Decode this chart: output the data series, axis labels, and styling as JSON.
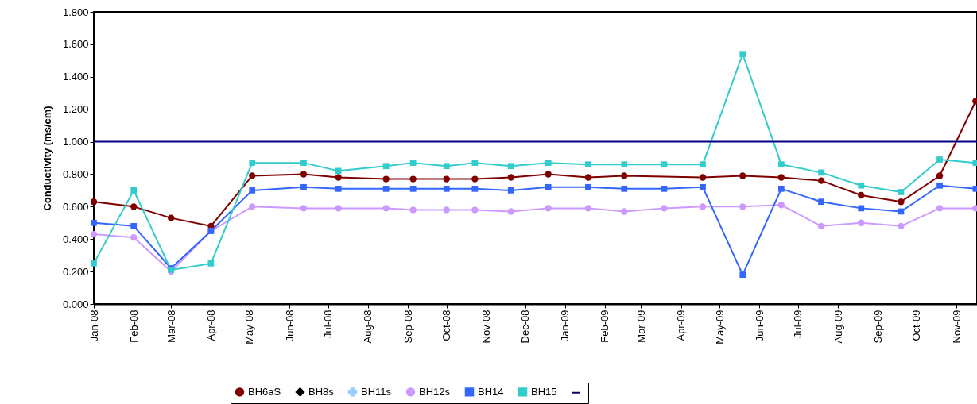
{
  "chart_data": {
    "type": "line",
    "ylabel": "Conductivity (ms/cm)",
    "x": [
      "2008-01-01",
      "2008-02-01",
      "2008-03-01",
      "2008-04-01",
      "2008-05-03",
      "2008-06-12",
      "2008-07-09",
      "2008-08-15",
      "2008-09-05",
      "2008-10-01",
      "2008-10-23",
      "2008-11-20",
      "2008-12-19",
      "2009-01-19",
      "2009-02-16",
      "2009-03-19",
      "2009-04-18",
      "2009-05-19",
      "2009-06-18",
      "2009-07-19",
      "2009-08-19",
      "2009-09-19",
      "2009-10-19",
      "2009-11-16"
    ],
    "series": [
      {
        "name": "BH6aS",
        "color": "#800000",
        "marker": "circle",
        "x": [
          "2008-01-01",
          "2008-02-01",
          "2008-03-01",
          "2008-04-01",
          "2008-05-03",
          "2008-06-12",
          "2008-07-09",
          "2008-08-15",
          "2008-09-05",
          "2008-10-01",
          "2008-10-23",
          "2008-11-20",
          "2008-12-19",
          "2009-01-19",
          "2009-02-16",
          "2009-04-18",
          "2009-05-19",
          "2009-06-18",
          "2009-07-19",
          "2009-08-19",
          "2009-09-19",
          "2009-10-19",
          "2009-11-16"
        ],
        "values": [
          0.63,
          0.6,
          0.53,
          0.48,
          0.79,
          0.8,
          0.78,
          0.77,
          0.77,
          0.77,
          0.77,
          0.78,
          0.8,
          0.78,
          0.79,
          0.78,
          0.79,
          0.78,
          0.76,
          0.67,
          0.63,
          0.79,
          1.25
        ]
      },
      {
        "name": "BH8s",
        "color": "#000000",
        "marker": "diamond",
        "values": [
          null,
          null,
          null,
          null,
          null,
          null,
          null,
          null,
          null,
          null,
          null,
          null,
          null,
          null,
          null,
          null,
          null,
          null,
          null,
          null,
          null,
          null,
          null,
          null
        ]
      },
      {
        "name": "BH11s",
        "color": "#99ccff",
        "marker": "cross",
        "values": [
          null,
          null,
          null,
          null,
          null,
          null,
          null,
          null,
          null,
          null,
          null,
          null,
          null,
          null,
          null,
          null,
          null,
          null,
          null,
          null,
          null,
          null,
          null,
          null
        ]
      },
      {
        "name": "BH12s",
        "color": "#cc99ff",
        "marker": "circle",
        "values": [
          0.43,
          0.41,
          0.2,
          0.45,
          0.6,
          0.59,
          0.59,
          0.59,
          0.58,
          0.58,
          0.58,
          0.57,
          0.59,
          0.59,
          0.57,
          0.59,
          0.6,
          0.6,
          0.61,
          0.48,
          0.5,
          0.48,
          0.59,
          0.59
        ]
      },
      {
        "name": "BH14",
        "color": "#3366ff",
        "marker": "square",
        "values": [
          0.5,
          0.48,
          0.22,
          0.45,
          0.7,
          0.72,
          0.71,
          0.71,
          0.71,
          0.71,
          0.71,
          0.7,
          0.72,
          0.72,
          0.71,
          0.71,
          0.72,
          0.18,
          0.71,
          0.63,
          0.59,
          0.57,
          0.73,
          0.71
        ]
      },
      {
        "name": "BH15",
        "color": "#33cccc",
        "marker": "square",
        "values": [
          0.25,
          0.7,
          0.21,
          0.25,
          0.87,
          0.87,
          0.82,
          0.85,
          0.87,
          0.85,
          0.87,
          0.85,
          0.87,
          0.86,
          0.86,
          0.86,
          0.86,
          1.54,
          0.86,
          0.81,
          0.73,
          0.69,
          0.89,
          0.87
        ]
      }
    ],
    "ref_lines": [
      {
        "axis": "y",
        "value": 1.0,
        "color": "#000080"
      }
    ],
    "xlim": [
      "2008-01-01",
      "2009-11-17"
    ],
    "xticks": [
      {
        "value": "2008-01",
        "label": "Jan-08"
      },
      {
        "value": "2008-02",
        "label": "Feb-08"
      },
      {
        "value": "2008-03",
        "label": "Mar-08"
      },
      {
        "value": "2008-04",
        "label": "Apr-08"
      },
      {
        "value": "2008-05",
        "label": "May-08"
      },
      {
        "value": "2008-06",
        "label": "Jun-08"
      },
      {
        "value": "2008-07",
        "label": "Jul-08"
      },
      {
        "value": "2008-08",
        "label": "Aug-08"
      },
      {
        "value": "2008-09",
        "label": "Sep-08"
      },
      {
        "value": "2008-10",
        "label": "Oct-08"
      },
      {
        "value": "2008-11",
        "label": "Nov-08"
      },
      {
        "value": "2008-12",
        "label": "Dec-08"
      },
      {
        "value": "2009-01",
        "label": "Jan-09"
      },
      {
        "value": "2009-02",
        "label": "Feb-09"
      },
      {
        "value": "2009-03",
        "label": "Mar-09"
      },
      {
        "value": "2009-04",
        "label": "Apr-09"
      },
      {
        "value": "2009-05",
        "label": "May-09"
      },
      {
        "value": "2009-06",
        "label": "Jun-09"
      },
      {
        "value": "2009-07",
        "label": "Jul-09"
      },
      {
        "value": "2009-08",
        "label": "Aug-09"
      },
      {
        "value": "2009-09",
        "label": "Sep-09"
      },
      {
        "value": "2009-10",
        "label": "Oct-09"
      },
      {
        "value": "2009-11",
        "label": "Nov-09"
      }
    ],
    "ylim": [
      0,
      1.8
    ],
    "yticks": [
      {
        "value": 0,
        "label": "0.000"
      },
      {
        "value": 0.2,
        "label": "0.200"
      },
      {
        "value": 0.4,
        "label": "0.400"
      },
      {
        "value": 0.6,
        "label": "0.600"
      },
      {
        "value": 0.8,
        "label": "0.800"
      },
      {
        "value": 1.0,
        "label": "1.000"
      },
      {
        "value": 1.2,
        "label": "1.200"
      },
      {
        "value": 1.4,
        "label": "1.400"
      },
      {
        "value": 1.6,
        "label": "1.600"
      },
      {
        "value": 1.8,
        "label": "1.800"
      }
    ],
    "grid": false,
    "legend": "bottom"
  }
}
